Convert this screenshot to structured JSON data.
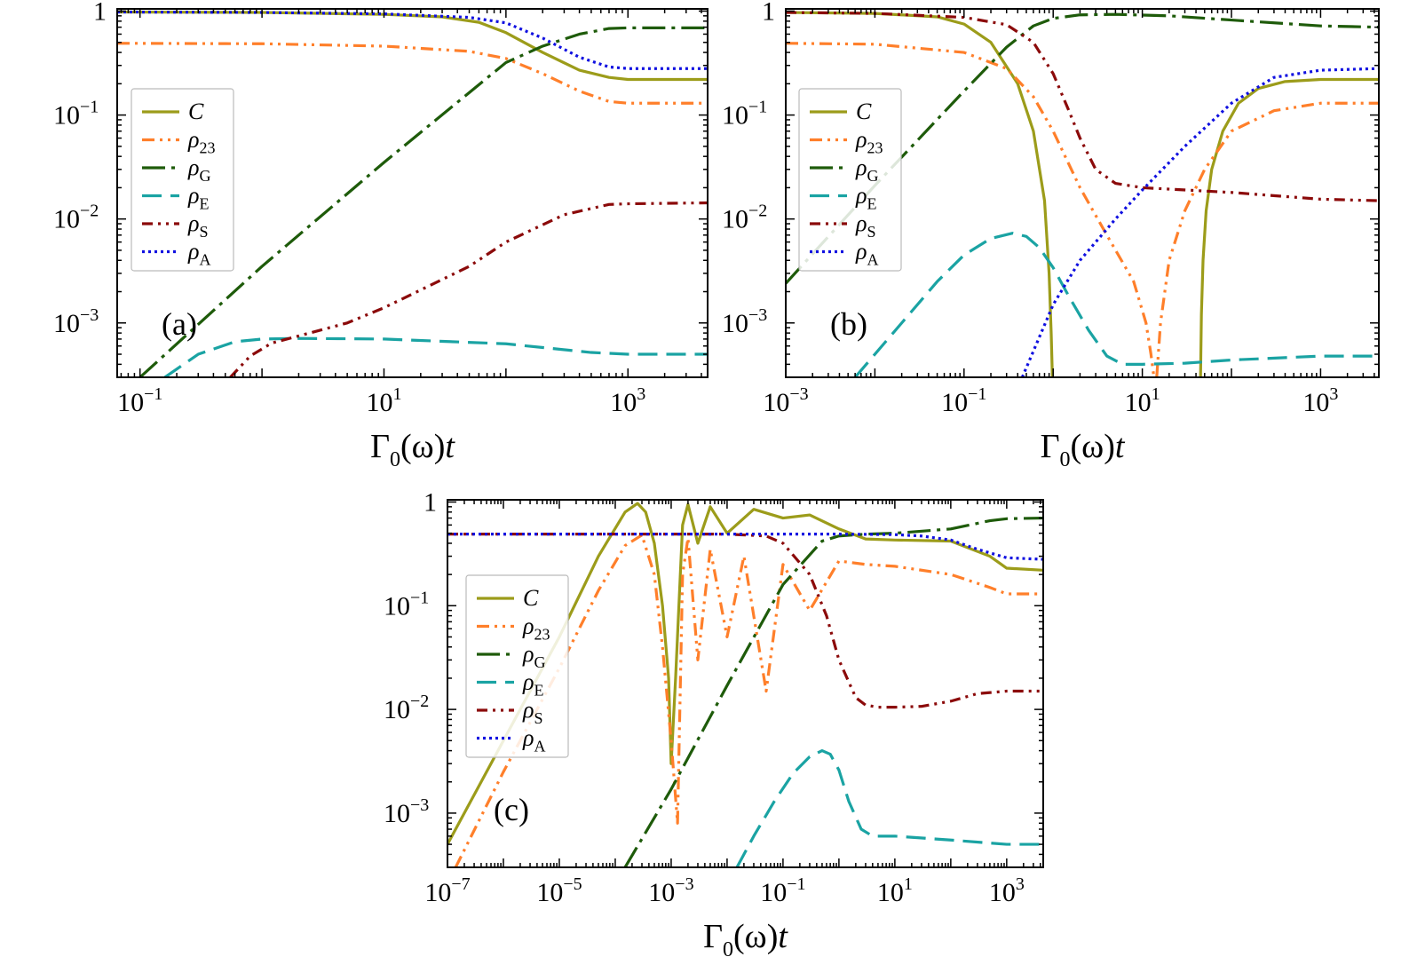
{
  "figure": {
    "xlabel": "Γ0(ω)t",
    "xlabel_parts": {
      "main": "Γ",
      "sub": "0",
      "rest": "(ω)",
      "var": "t"
    },
    "legend": [
      {
        "key": "C",
        "label": "C",
        "sub": "",
        "color": "#9c9c1a",
        "dash": "solid"
      },
      {
        "key": "rho23",
        "label": "ρ",
        "sub": "23",
        "color": "#ff7f2a",
        "dash": "dashdotdot"
      },
      {
        "key": "rhoG",
        "label": "ρ",
        "sub": "G",
        "color": "#1e5b0a",
        "dash": "longdashdot"
      },
      {
        "key": "rhoE",
        "label": "ρ",
        "sub": "E",
        "color": "#1aa3a3",
        "dash": "longdash"
      },
      {
        "key": "rhoS",
        "label": "ρ",
        "sub": "S",
        "color": "#8b0a0a",
        "dash": "dashdotdot2"
      },
      {
        "key": "rhoA",
        "label": "ρ",
        "sub": "A",
        "color": "#1010e0",
        "dash": "dotted"
      }
    ]
  },
  "chart_data": [
    {
      "type": "line",
      "panel_label": "(a)",
      "xscale": "log",
      "yscale": "log",
      "xlim": [
        0.065,
        4500
      ],
      "ylim": [
        0.0003,
        1.05
      ],
      "xticks": [
        {
          "v": 0.1,
          "base": "10",
          "exp": "−1"
        },
        {
          "v": 10,
          "base": "10",
          "exp": "1"
        },
        {
          "v": 1000,
          "base": "10",
          "exp": "3"
        }
      ],
      "yticks": [
        {
          "v": 1,
          "base": "1",
          "exp": ""
        },
        {
          "v": 0.1,
          "base": "10",
          "exp": "−1"
        },
        {
          "v": 0.01,
          "base": "10",
          "exp": "−2"
        },
        {
          "v": 0.001,
          "base": "10",
          "exp": "−3"
        }
      ],
      "series": [
        {
          "key": "C",
          "x": [
            0.065,
            1,
            10,
            30,
            60,
            100,
            200,
            400,
            700,
            1000,
            4500
          ],
          "y": [
            0.98,
            0.97,
            0.93,
            0.88,
            0.78,
            0.62,
            0.4,
            0.27,
            0.23,
            0.22,
            0.22
          ]
        },
        {
          "key": "rho23",
          "x": [
            0.065,
            1,
            10,
            50,
            100,
            200,
            400,
            700,
            1000,
            4500
          ],
          "y": [
            0.49,
            0.485,
            0.46,
            0.41,
            0.35,
            0.25,
            0.17,
            0.135,
            0.13,
            0.13
          ]
        },
        {
          "key": "rhoG",
          "x": [
            0.1,
            1,
            10,
            100,
            200,
            400,
            700,
            1000,
            4500
          ],
          "y": [
            0.0003,
            0.0035,
            0.035,
            0.32,
            0.46,
            0.6,
            0.68,
            0.69,
            0.69
          ]
        },
        {
          "key": "rhoE",
          "x": [
            0.16,
            0.3,
            0.6,
            1,
            2,
            10,
            100,
            500,
            1000,
            4500
          ],
          "y": [
            0.0003,
            0.0005,
            0.00066,
            0.0007,
            0.00071,
            0.0007,
            0.00063,
            0.00052,
            0.0005,
            0.0005
          ]
        },
        {
          "key": "rhoS",
          "x": [
            0.55,
            0.8,
            1.2,
            2,
            5,
            10,
            50,
            100,
            300,
            700,
            1000,
            4500
          ],
          "y": [
            0.0003,
            0.00048,
            0.00064,
            0.00075,
            0.001,
            0.0014,
            0.0035,
            0.006,
            0.011,
            0.0138,
            0.014,
            0.0143
          ]
        },
        {
          "key": "rhoA",
          "x": [
            0.065,
            1,
            10,
            50,
            100,
            200,
            400,
            700,
            1000,
            4500
          ],
          "y": [
            0.98,
            0.97,
            0.94,
            0.87,
            0.77,
            0.55,
            0.36,
            0.29,
            0.28,
            0.28
          ]
        }
      ]
    },
    {
      "type": "line",
      "panel_label": "(b)",
      "xscale": "log",
      "yscale": "log",
      "xlim": [
        0.001,
        4500
      ],
      "ylim": [
        0.0003,
        1.05
      ],
      "xticks": [
        {
          "v": 0.001,
          "base": "10",
          "exp": "−3"
        },
        {
          "v": 0.1,
          "base": "10",
          "exp": "−1"
        },
        {
          "v": 10,
          "base": "10",
          "exp": "1"
        },
        {
          "v": 1000,
          "base": "10",
          "exp": "3"
        }
      ],
      "yticks": [
        {
          "v": 1,
          "base": "1",
          "exp": ""
        },
        {
          "v": 0.1,
          "base": "10",
          "exp": "−1"
        },
        {
          "v": 0.01,
          "base": "10",
          "exp": "−2"
        },
        {
          "v": 0.001,
          "base": "10",
          "exp": "−3"
        }
      ],
      "series": [
        {
          "key": "C",
          "x": [
            0.001,
            0.01,
            0.05,
            0.1,
            0.2,
            0.4,
            0.6,
            0.8,
            0.9,
            0.95,
            0.98
          ],
          "y": [
            0.97,
            0.95,
            0.88,
            0.75,
            0.5,
            0.2,
            0.07,
            0.015,
            0.003,
            0.0008,
            0.0003
          ]
        },
        {
          "key": "C",
          "x": [
            45,
            46,
            48,
            52,
            60,
            80,
            120,
            200,
            400,
            1000,
            4500
          ],
          "y": [
            0.0003,
            0.0012,
            0.004,
            0.012,
            0.03,
            0.07,
            0.13,
            0.18,
            0.21,
            0.22,
            0.22
          ]
        },
        {
          "key": "rho23",
          "x": [
            0.001,
            0.01,
            0.1,
            0.3,
            0.6,
            1,
            2,
            4,
            8,
            11,
            12.5,
            13.5
          ],
          "y": [
            0.49,
            0.48,
            0.4,
            0.28,
            0.15,
            0.07,
            0.02,
            0.007,
            0.0025,
            0.001,
            0.0005,
            0.0003
          ]
        },
        {
          "key": "rho23",
          "x": [
            14.5,
            16,
            20,
            30,
            50,
            100,
            300,
            1000,
            4500
          ],
          "y": [
            0.0003,
            0.001,
            0.004,
            0.012,
            0.03,
            0.07,
            0.11,
            0.13,
            0.13
          ]
        },
        {
          "key": "rhoG",
          "x": [
            0.001,
            0.01,
            0.1,
            0.3,
            0.6,
            1,
            2,
            5,
            20,
            100,
            1000,
            4500
          ],
          "y": [
            0.0024,
            0.021,
            0.17,
            0.45,
            0.72,
            0.85,
            0.92,
            0.93,
            0.9,
            0.82,
            0.72,
            0.7
          ]
        },
        {
          "key": "rhoE",
          "x": [
            0.006,
            0.02,
            0.05,
            0.1,
            0.2,
            0.35,
            0.5,
            0.7,
            1,
            1.5,
            2.5,
            4,
            6,
            10,
            30,
            100,
            1000,
            4500
          ],
          "y": [
            0.0003,
            0.001,
            0.0025,
            0.0045,
            0.0065,
            0.0073,
            0.0068,
            0.0053,
            0.0034,
            0.0018,
            0.00085,
            0.00048,
            0.0004,
            0.0004,
            0.00041,
            0.00044,
            0.00048,
            0.00048
          ]
        },
        {
          "key": "rhoS",
          "x": [
            0.001,
            0.01,
            0.1,
            0.3,
            0.6,
            1,
            1.5,
            2,
            3,
            5,
            10,
            100,
            1000,
            4500
          ],
          "y": [
            0.97,
            0.95,
            0.87,
            0.74,
            0.5,
            0.25,
            0.11,
            0.06,
            0.03,
            0.022,
            0.02,
            0.018,
            0.0155,
            0.015
          ]
        },
        {
          "key": "rhoA",
          "x": [
            0.45,
            1,
            2,
            5,
            10,
            30,
            100,
            300,
            1000,
            4500
          ],
          "y": [
            0.0003,
            0.0015,
            0.004,
            0.01,
            0.019,
            0.05,
            0.13,
            0.23,
            0.27,
            0.28
          ]
        }
      ]
    },
    {
      "type": "line",
      "panel_label": "(c)",
      "xscale": "log",
      "yscale": "log",
      "xlim": [
        1e-07,
        4500
      ],
      "ylim": [
        0.0003,
        1.05
      ],
      "xticks": [
        {
          "v": 1e-07,
          "base": "10",
          "exp": "−7"
        },
        {
          "v": 1e-05,
          "base": "10",
          "exp": "−5"
        },
        {
          "v": 0.001,
          "base": "10",
          "exp": "−3"
        },
        {
          "v": 0.1,
          "base": "10",
          "exp": "−1"
        },
        {
          "v": 10,
          "base": "10",
          "exp": "1"
        },
        {
          "v": 1000,
          "base": "10",
          "exp": "3"
        }
      ],
      "yticks": [
        {
          "v": 1,
          "base": "1",
          "exp": ""
        },
        {
          "v": 0.1,
          "base": "10",
          "exp": "−1"
        },
        {
          "v": 0.01,
          "base": "10",
          "exp": "−2"
        },
        {
          "v": 0.001,
          "base": "10",
          "exp": "−3"
        }
      ],
      "series": [
        {
          "key": "C",
          "x": [
            1e-07,
            1e-06,
            1e-05,
            5e-05,
            0.00015,
            0.00025,
            0.00035,
            0.0005,
            0.0007,
            0.0009,
            0.001,
            0.0012,
            0.0016,
            0.002,
            0.003,
            0.005,
            0.01,
            0.03,
            0.1,
            0.3,
            1,
            3,
            10,
            100,
            500,
            1000,
            4500
          ],
          "y": [
            0.0005,
            0.005,
            0.05,
            0.3,
            0.8,
            0.97,
            0.8,
            0.4,
            0.1,
            0.02,
            0.003,
            0.02,
            0.6,
            0.95,
            0.4,
            0.9,
            0.5,
            0.85,
            0.7,
            0.75,
            0.55,
            0.44,
            0.43,
            0.42,
            0.3,
            0.23,
            0.22
          ]
        },
        {
          "key": "rho23",
          "x": [
            1.4e-07,
            1e-06,
            1e-05,
            5e-05,
            0.00015,
            0.0003,
            0.0005,
            0.0007,
            0.001,
            0.0013,
            0.0016,
            0.002,
            0.003,
            0.005,
            0.01,
            0.02,
            0.05,
            0.1,
            0.3,
            1,
            3,
            10,
            100,
            500,
            1000,
            4500
          ],
          "y": [
            0.0003,
            0.0025,
            0.025,
            0.14,
            0.38,
            0.48,
            0.2,
            0.04,
            0.005,
            0.0008,
            0.2,
            0.45,
            0.03,
            0.35,
            0.05,
            0.3,
            0.015,
            0.25,
            0.09,
            0.27,
            0.25,
            0.24,
            0.2,
            0.15,
            0.13,
            0.13
          ]
        },
        {
          "key": "rhoG",
          "x": [
            0.00015,
            0.001,
            0.01,
            0.1,
            0.5,
            1,
            3,
            10,
            100,
            500,
            1000,
            4500
          ],
          "y": [
            0.0003,
            0.0017,
            0.017,
            0.16,
            0.42,
            0.47,
            0.49,
            0.5,
            0.55,
            0.66,
            0.69,
            0.7
          ]
        },
        {
          "key": "rhoE",
          "x": [
            0.015,
            0.03,
            0.07,
            0.15,
            0.3,
            0.5,
            0.7,
            1,
            1.5,
            2.5,
            4,
            10,
            100,
            1000,
            4500
          ],
          "y": [
            0.0003,
            0.0006,
            0.0013,
            0.0024,
            0.0035,
            0.004,
            0.0037,
            0.0026,
            0.0013,
            0.0007,
            0.0006,
            0.0006,
            0.00055,
            0.0005,
            0.0005
          ]
        },
        {
          "key": "rhoS",
          "x": [
            1e-07,
            0.001,
            0.01,
            0.05,
            0.1,
            0.3,
            0.6,
            1,
            2,
            3,
            5,
            10,
            30,
            100,
            300,
            1000,
            4500
          ],
          "y": [
            0.49,
            0.49,
            0.49,
            0.47,
            0.4,
            0.2,
            0.08,
            0.03,
            0.013,
            0.011,
            0.0105,
            0.0105,
            0.0107,
            0.012,
            0.0142,
            0.015,
            0.015
          ]
        },
        {
          "key": "rhoA",
          "x": [
            1e-07,
            0.001,
            0.1,
            1,
            10,
            30,
            100,
            300,
            1000,
            4500
          ],
          "y": [
            0.49,
            0.49,
            0.49,
            0.49,
            0.485,
            0.47,
            0.43,
            0.35,
            0.29,
            0.28
          ]
        }
      ]
    }
  ]
}
